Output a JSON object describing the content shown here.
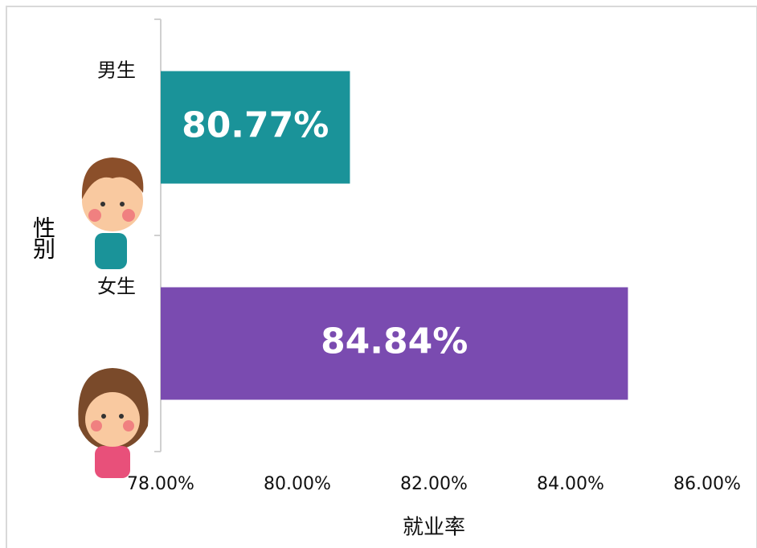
{
  "chart_data": {
    "type": "bar",
    "orientation": "horizontal",
    "categories": [
      "男生",
      "女生"
    ],
    "values": [
      80.77,
      84.84
    ],
    "value_labels": [
      "80.77%",
      "84.84%"
    ],
    "colors": [
      "#1a9399",
      "#7a4bb0"
    ],
    "xlim": [
      78,
      86
    ],
    "xticks": [
      {
        "value": 78,
        "label": "78.00%"
      },
      {
        "value": 80,
        "label": "80.00%"
      },
      {
        "value": 82,
        "label": "82.00%"
      },
      {
        "value": 84,
        "label": "84.00%"
      },
      {
        "value": 86,
        "label": "86.00%"
      }
    ],
    "xlabel": "就业率",
    "ylabel": "性别"
  }
}
